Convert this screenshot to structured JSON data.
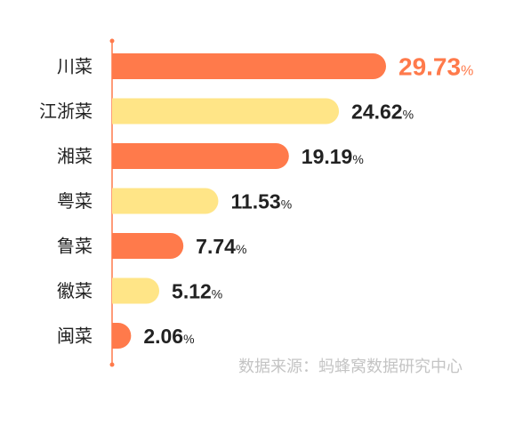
{
  "chart_data": {
    "type": "bar",
    "orientation": "horizontal",
    "categories": [
      "川菜",
      "江浙菜",
      "湘菜",
      "粤菜",
      "鲁菜",
      "徽菜",
      "闽菜"
    ],
    "values": [
      29.73,
      24.62,
      19.19,
      11.53,
      7.74,
      5.12,
      2.06
    ],
    "value_labels": [
      "29.73",
      "24.62",
      "19.19",
      "11.53",
      "7.74",
      "5.12",
      "2.06"
    ],
    "unit": "%",
    "xlim": [
      0,
      29.73
    ],
    "grid": false,
    "legend": "none",
    "colors": {
      "odd_bar": "#FF7A4B",
      "even_bar": "#FFE587",
      "highlight_label": "#FF7A4B",
      "label": "#222222",
      "axis": "#FF7A4B"
    }
  },
  "source_text": "数据来源：蚂蜂窝数据研究中心"
}
